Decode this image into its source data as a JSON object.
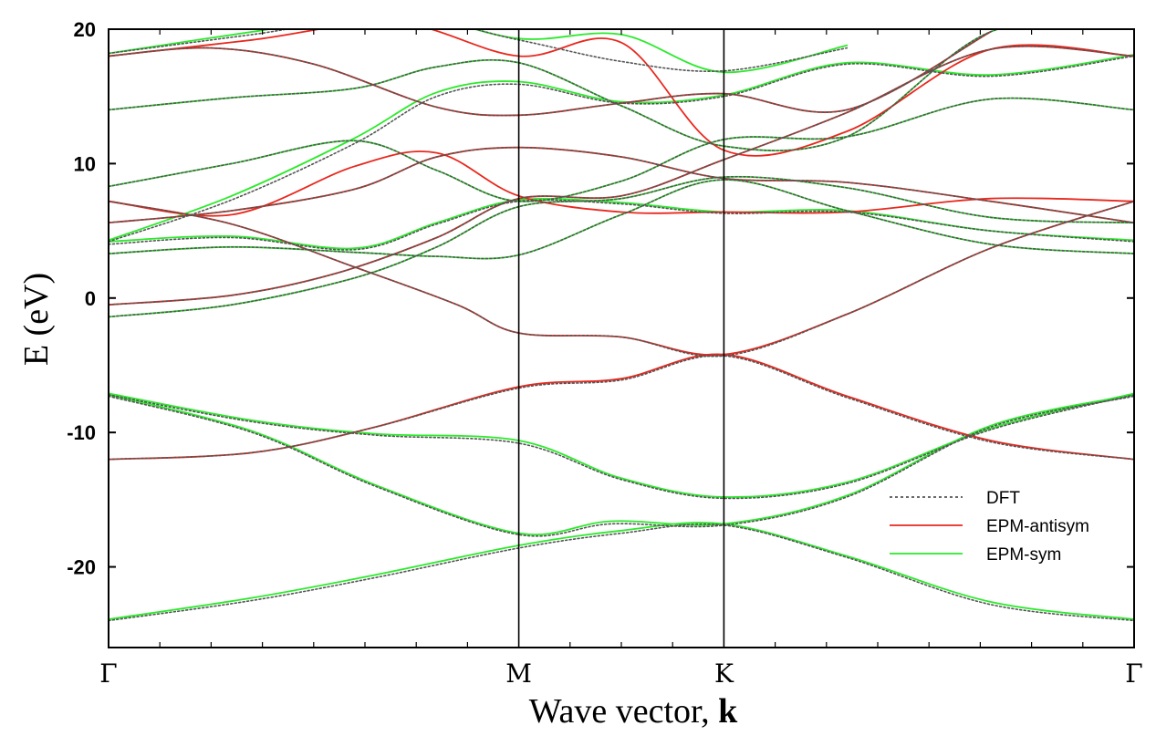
{
  "chart_data": {
    "type": "line",
    "title": "",
    "xlabel": "Wave vector, ",
    "xlabel_bold": "k",
    "ylabel": "E (eV)",
    "ylim": [
      -26,
      20
    ],
    "xlim": [
      0,
      5
    ],
    "yticks": [
      20,
      10,
      0,
      -10,
      -20
    ],
    "ytick_labels": [
      "20",
      "10",
      "0",
      "-10",
      "-20"
    ],
    "xticks": [
      0,
      2,
      3,
      5
    ],
    "xtick_labels": [
      "Γ",
      "M",
      "K",
      "Γ"
    ],
    "minor_xticks": [
      0.25,
      0.5,
      0.75,
      1,
      1.25,
      1.5,
      1.75,
      2.25,
      2.5,
      2.75,
      3.25,
      3.5,
      3.75,
      4,
      4.25,
      4.5,
      4.75
    ],
    "symmetry_lines": [
      2,
      3
    ],
    "grid": false,
    "legend_position": "bottom-right",
    "colors": {
      "DFT": "#555555",
      "EPM-antisym": "#e8281e",
      "EPM-sym": "#2bea2b",
      "axis": "#000000"
    },
    "series": [
      {
        "name": "DFT",
        "style": "dotted",
        "bands": [
          {
            "x": [
              0,
              0.7,
              1.3,
              2,
              2.5,
              3,
              3.6,
              4.3,
              5
            ],
            "y": [
              -24,
              -22.5,
              -20.8,
              -18.6,
              -17.5,
              -16.9,
              -19.3,
              -22.8,
              -24
            ]
          },
          {
            "x": [
              0,
              0.7,
              1.3,
              2,
              2.45,
              3,
              3.6,
              4.3,
              5
            ],
            "y": [
              -7.3,
              -10,
              -14,
              -17.6,
              -16.8,
              -16.9,
              -14.8,
              -9.6,
              -7.3
            ]
          },
          {
            "x": [
              0,
              0.7,
              1.3,
              2,
              2.5,
              3,
              3.6,
              4.3,
              5
            ],
            "y": [
              -7.2,
              -9.2,
              -10.2,
              -10.8,
              -13.5,
              -14.9,
              -13.8,
              -9.8,
              -7.2
            ]
          },
          {
            "x": [
              0,
              0.7,
              1.3,
              2,
              2.5,
              3,
              3.6,
              4.3,
              5
            ],
            "y": [
              -12,
              -11.5,
              -9.6,
              -6.7,
              -6.1,
              -4.3,
              -7.4,
              -10.7,
              -12
            ]
          },
          {
            "x": [
              0,
              0.6,
              1.2,
              1.7,
              2,
              2.5,
              3,
              3.6,
              4.3,
              5
            ],
            "y": [
              7.2,
              5.5,
              2.3,
              -0.5,
              -2.6,
              -2.9,
              -4.3,
              -1.2,
              3.7,
              7.2
            ]
          },
          {
            "x": [
              0,
              0.6,
              1.1,
              1.6,
              2,
              2.5,
              3,
              3.6,
              4.3,
              5
            ],
            "y": [
              -0.5,
              0.2,
              1.8,
              4.5,
              7.4,
              7.6,
              10.3,
              13.8,
              18.5,
              18
            ]
          },
          {
            "x": [
              0,
              0.6,
              1.2,
              1.6,
              2,
              2.5,
              3,
              3.6,
              4.3,
              5
            ],
            "y": [
              -1.4,
              -0.5,
              1.5,
              3.8,
              6.8,
              7.4,
              9,
              8.2,
              6,
              5.6
            ]
          },
          {
            "x": [
              0,
              0.6,
              1.2,
              1.6,
              2,
              2.5,
              3,
              3.6,
              4.3,
              5
            ],
            "y": [
              3.3,
              3.8,
              3.4,
              3.1,
              3.2,
              6.2,
              8.8,
              6.5,
              4,
              3.3
            ]
          },
          {
            "x": [
              0,
              0.6,
              1.2,
              1.6,
              2,
              2.5,
              3,
              3.6,
              4.3,
              5
            ],
            "y": [
              4,
              4.5,
              3.6,
              5.5,
              7.2,
              7,
              6.3,
              6.4,
              5,
              4.2
            ]
          },
          {
            "x": [
              0,
              0.6,
              1.2,
              1.6,
              2,
              2.5,
              3,
              3.6,
              4.3,
              5
            ],
            "y": [
              5.6,
              6.5,
              8.1,
              10.5,
              11.2,
              10.5,
              8.9,
              8.6,
              7.2,
              5.6
            ]
          },
          {
            "x": [
              0,
              0.6,
              1.2,
              1.6,
              2,
              2.5,
              3,
              3.6,
              4.3,
              5
            ],
            "y": [
              8.3,
              10,
              11.7,
              9.5,
              7.2,
              8.7,
              11.8,
              12,
              14.8,
              14
            ]
          },
          {
            "x": [
              0,
              0.6,
              1.2,
              1.6,
              2,
              2.5,
              3,
              3.6,
              4.3,
              5
            ],
            "y": [
              4.2,
              7.3,
              11.5,
              15,
              15.9,
              14.5,
              15,
              17.4,
              16.5,
              18
            ]
          },
          {
            "x": [
              0,
              0.6,
              1.2,
              1.6,
              2,
              2.5,
              3,
              3.6,
              4.3,
              5
            ],
            "y": [
              14,
              14.9,
              15.6,
              17.2,
              17.5,
              14.3,
              11.3,
              12,
              19.8,
              20.5
            ]
          },
          {
            "x": [
              0,
              0.5,
              1,
              1.6,
              2,
              2.5,
              3,
              3.6,
              4.3
            ],
            "y": [
              18,
              18.6,
              17.4,
              14.2,
              13.6,
              14.5,
              15.2,
              14,
              19.8
            ]
          },
          {
            "x": [
              0,
              0.7,
              1.4,
              2,
              2.5,
              3,
              3.6
            ],
            "y": [
              18.2,
              19.6,
              21,
              19.2,
              17.6,
              16.9,
              18.6
            ]
          }
        ]
      },
      {
        "name": "EPM-antisym",
        "style": "solid",
        "bands": [
          {
            "x": [
              0,
              0.7,
              1.3,
              2,
              2.5,
              3,
              3.6,
              4.3,
              5
            ],
            "y": [
              -12,
              -11.5,
              -9.6,
              -6.6,
              -6,
              -4.2,
              -7.3,
              -10.6,
              -12
            ]
          },
          {
            "x": [
              0,
              0.6,
              1.2,
              1.7,
              2,
              2.5,
              3,
              3.6,
              4.3,
              5
            ],
            "y": [
              7.2,
              5.5,
              2.3,
              -0.5,
              -2.6,
              -2.9,
              -4.2,
              -1.2,
              3.7,
              7.2
            ]
          },
          {
            "x": [
              0,
              0.6,
              1.1,
              1.6,
              2,
              2.5,
              3,
              3.6,
              4.3,
              5
            ],
            "y": [
              -0.5,
              0.2,
              1.8,
              4.5,
              7.4,
              7.6,
              10.3,
              13.8,
              18.5,
              18
            ]
          },
          {
            "x": [
              0,
              0.6,
              1.2,
              1.6,
              2,
              2.5,
              3,
              3.6,
              4.3,
              5
            ],
            "y": [
              5.6,
              6.5,
              8.1,
              10.5,
              11.2,
              10.5,
              8.9,
              8.6,
              7.2,
              5.6
            ]
          },
          {
            "x": [
              0,
              0.6,
              1.2,
              1.6,
              2,
              2.5,
              3,
              3.6,
              4.3,
              5
            ],
            "y": [
              7.2,
              6.2,
              9.8,
              10.8,
              7.6,
              6.4,
              6.4,
              6.4,
              7.4,
              7.2
            ]
          },
          {
            "x": [
              0,
              0.5,
              1,
              1.6,
              2,
              2.5,
              3,
              3.6,
              4.3
            ],
            "y": [
              18,
              18.6,
              17.4,
              14.2,
              13.6,
              14.5,
              15.2,
              14,
              19.8
            ]
          },
          {
            "x": [
              0,
              0.7,
              1.4,
              2,
              2.5,
              3,
              3.6,
              4.3,
              5
            ],
            "y": [
              18,
              19.2,
              20.5,
              18,
              19,
              11,
              12.4,
              18.5,
              18
            ]
          }
        ]
      },
      {
        "name": "EPM-sym",
        "style": "solid",
        "bands": [
          {
            "x": [
              0,
              0.7,
              1.3,
              2,
              2.5,
              3,
              3.6,
              4.3,
              5
            ],
            "y": [
              -23.9,
              -22.3,
              -20.6,
              -18.4,
              -17.3,
              -16.8,
              -19.2,
              -22.6,
              -23.9
            ]
          },
          {
            "x": [
              0,
              0.7,
              1.3,
              2,
              2.45,
              3,
              3.6,
              4.3,
              5
            ],
            "y": [
              -7.2,
              -9.9,
              -13.9,
              -17.5,
              -16.6,
              -16.8,
              -14.7,
              -9.5,
              -7.2
            ]
          },
          {
            "x": [
              0,
              0.7,
              1.3,
              2,
              2.5,
              3,
              3.6,
              4.3,
              5
            ],
            "y": [
              -7.1,
              -9.1,
              -10.1,
              -10.6,
              -13.4,
              -14.8,
              -13.7,
              -9.7,
              -7.1
            ]
          },
          {
            "x": [
              0,
              0.6,
              1.2,
              1.6,
              2,
              2.5,
              3,
              3.6,
              4.3,
              5
            ],
            "y": [
              -1.4,
              -0.5,
              1.5,
              3.8,
              6.8,
              7.4,
              9,
              8.2,
              6,
              5.6
            ]
          },
          {
            "x": [
              0,
              0.6,
              1.2,
              1.6,
              2,
              2.5,
              3,
              3.6,
              4.3,
              5
            ],
            "y": [
              3.3,
              3.8,
              3.4,
              3.1,
              3.2,
              6.2,
              8.8,
              6.5,
              4,
              3.3
            ]
          },
          {
            "x": [
              0,
              0.6,
              1.2,
              1.6,
              2,
              2.5,
              3,
              3.6,
              4.3,
              5
            ],
            "y": [
              4.2,
              4.6,
              3.7,
              5.6,
              7.3,
              7.1,
              6.4,
              6.5,
              5,
              4.3
            ]
          },
          {
            "x": [
              0,
              0.6,
              1.2,
              1.6,
              2,
              2.5,
              3,
              3.6,
              4.3,
              5
            ],
            "y": [
              8.3,
              10,
              11.7,
              9.5,
              7.2,
              8.7,
              11.8,
              12,
              14.8,
              14
            ]
          },
          {
            "x": [
              0,
              0.6,
              1.2,
              1.6,
              2,
              2.5,
              3,
              3.6,
              4.3,
              5
            ],
            "y": [
              4.3,
              7.6,
              11.9,
              15.3,
              16.1,
              14.6,
              15.1,
              17.5,
              16.6,
              18.1
            ]
          },
          {
            "x": [
              0,
              0.6,
              1.2,
              1.6,
              2,
              2.5,
              3,
              3.6,
              4.3,
              5
            ],
            "y": [
              14,
              14.9,
              15.6,
              17.2,
              17.5,
              14.3,
              11.3,
              12,
              19.8,
              20.5
            ]
          },
          {
            "x": [
              0,
              0.7,
              1.4,
              2,
              2.5,
              3,
              3.6
            ],
            "y": [
              18.2,
              19.8,
              21.2,
              19.3,
              19.6,
              16.8,
              18.8
            ]
          }
        ]
      }
    ]
  }
}
